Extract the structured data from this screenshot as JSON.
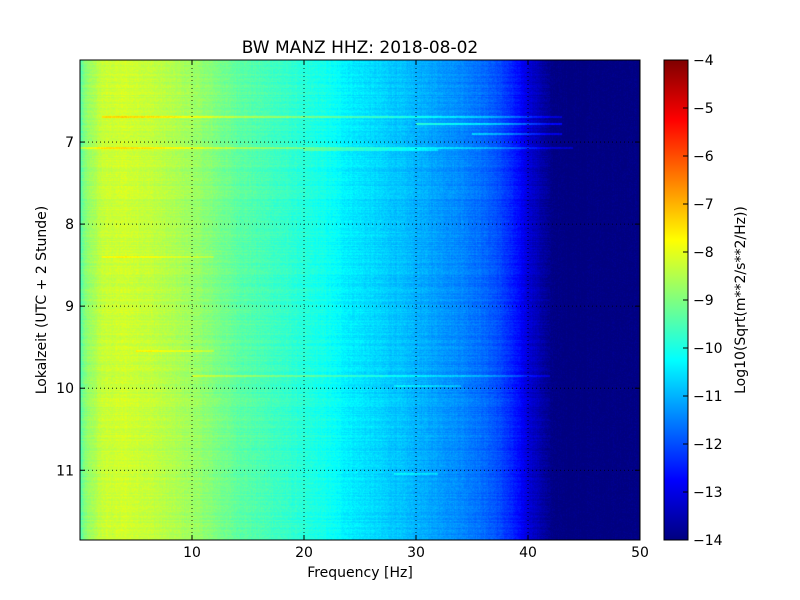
{
  "chart_data": {
    "type": "heatmap",
    "title": "BW MANZ HHZ: 2018-08-02",
    "xlabel": "Frequency [Hz]",
    "ylabel": "Lokalzeit (UTC + 2 Stunde)",
    "colorbar_label": "Log10(Sqrt(m**2/s**2/Hz))",
    "xlim": [
      0,
      50
    ],
    "ylim": [
      6.0,
      11.85
    ],
    "y_inverted": true,
    "x_ticks": [
      10,
      20,
      30,
      40,
      50
    ],
    "x_tick_labels": [
      "10",
      "20",
      "30",
      "40",
      "50"
    ],
    "y_ticks": [
      7,
      8,
      9,
      10,
      11
    ],
    "y_tick_labels": [
      "7",
      "8",
      "9",
      "10",
      "11"
    ],
    "colorbar_range": [
      -14,
      -4
    ],
    "colorbar_ticks": [
      -4,
      -5,
      -6,
      -7,
      -8,
      -9,
      -10,
      -11,
      -12,
      -13,
      -14
    ],
    "colorbar_tick_labels": [
      "−4",
      "−5",
      "−6",
      "−7",
      "−8",
      "−9",
      "−10",
      "−11",
      "−12",
      "−13",
      "−14"
    ],
    "colormap": "jet",
    "grid": true,
    "mean_spectrum": {
      "frequency_hz": [
        0,
        0.5,
        2,
        4,
        6,
        8,
        10,
        12,
        14,
        16,
        18,
        20,
        22,
        24,
        26,
        28,
        30,
        32,
        34,
        36,
        37,
        38,
        39,
        40,
        41,
        42,
        43,
        45,
        50
      ],
      "log10_amplitude": [
        -9.5,
        -8.9,
        -8.3,
        -8.2,
        -8.3,
        -8.5,
        -8.7,
        -9.0,
        -9.3,
        -9.5,
        -9.7,
        -9.9,
        -10.1,
        -10.4,
        -10.6,
        -10.8,
        -11.0,
        -11.2,
        -11.4,
        -11.7,
        -11.9,
        -12.2,
        -12.6,
        -13.1,
        -13.5,
        -13.9,
        -14.0,
        -14.0,
        -14.0
      ]
    },
    "bright_bands": [
      {
        "time": 6.7,
        "f_min": 2,
        "f_max": 43,
        "delta": 0.8
      },
      {
        "time": 6.78,
        "f_min": 30,
        "f_max": 43,
        "delta": 1.2
      },
      {
        "time": 6.9,
        "f_min": 35,
        "f_max": 43,
        "delta": 0.9
      },
      {
        "time": 7.07,
        "f_min": 0,
        "f_max": 44,
        "delta": 0.7
      },
      {
        "time": 7.1,
        "f_min": 20,
        "f_max": 32,
        "delta": 0.6
      },
      {
        "time": 8.4,
        "f_min": 2,
        "f_max": 12,
        "delta": 0.5
      },
      {
        "time": 9.55,
        "f_min": 5,
        "f_max": 12,
        "delta": 0.6
      },
      {
        "time": 9.85,
        "f_min": 10,
        "f_max": 42,
        "delta": 0.7
      },
      {
        "time": 9.97,
        "f_min": 28,
        "f_max": 34,
        "delta": 0.6
      },
      {
        "time": 11.05,
        "f_min": 28,
        "f_max": 32,
        "delta": 0.6
      }
    ]
  }
}
